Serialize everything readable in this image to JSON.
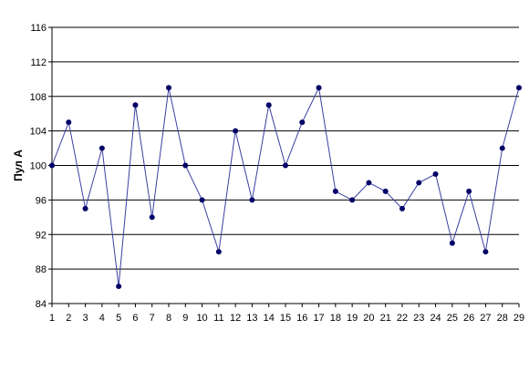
{
  "chart_data": {
    "type": "line",
    "title": "",
    "xlabel": "",
    "ylabel": "Пул А",
    "categories": [
      "1",
      "2",
      "3",
      "4",
      "5",
      "6",
      "7",
      "8",
      "9",
      "10",
      "11",
      "12",
      "13",
      "14",
      "15",
      "16",
      "17",
      "18",
      "19",
      "20",
      "21",
      "22",
      "23",
      "24",
      "25",
      "26",
      "27",
      "28",
      "29"
    ],
    "series": [
      {
        "name": "",
        "color": "#3a3fa0",
        "marker_color": "#000066",
        "values": [
          100,
          105,
          95,
          102,
          86,
          107,
          94,
          109,
          100,
          96,
          90,
          104,
          96,
          107,
          100,
          105,
          109,
          97,
          96,
          98,
          97,
          95,
          98,
          99,
          91,
          97,
          90,
          102,
          109
        ]
      }
    ],
    "ylim": [
      84,
      116
    ],
    "yticks": [
      84,
      88,
      92,
      96,
      100,
      104,
      108,
      112,
      116
    ],
    "grid": true,
    "legend": "none"
  }
}
